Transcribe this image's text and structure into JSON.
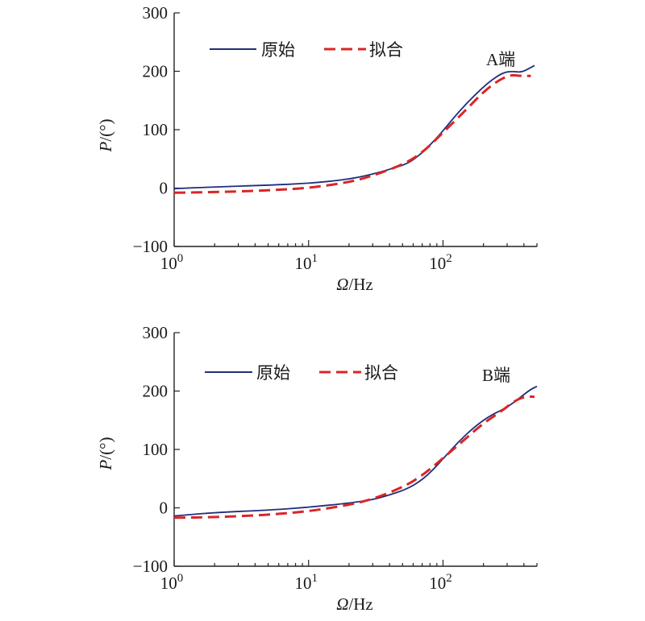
{
  "chart_data": [
    {
      "type": "line",
      "id": "A",
      "annotation": "A端",
      "xlabel": "Ω/Hz",
      "ylabel": "P/(°)",
      "x_scale": "log",
      "xlim": [
        1,
        500
      ],
      "ylim": [
        -100,
        300
      ],
      "yticks": [
        "−100",
        "0",
        "100",
        "200",
        "300"
      ],
      "xticks": [
        {
          "base": "10",
          "exp": "0"
        },
        {
          "base": "10",
          "exp": "1"
        },
        {
          "base": "10",
          "exp": "2"
        }
      ],
      "legend": {
        "position": "top-left",
        "entries": [
          "原始",
          "拟合"
        ]
      },
      "series": [
        {
          "name": "原始",
          "style": "solid",
          "color": "#1f2f7a",
          "points": [
            [
              1,
              -1
            ],
            [
              2,
              2
            ],
            [
              5,
              5
            ],
            [
              10,
              8
            ],
            [
              20,
              15
            ],
            [
              30,
              24
            ],
            [
              40,
              32
            ],
            [
              55,
              42
            ],
            [
              70,
              60
            ],
            [
              85,
              80
            ],
            [
              100,
              98
            ],
            [
              130,
              130
            ],
            [
              170,
              158
            ],
            [
              220,
              182
            ],
            [
              280,
              198
            ],
            [
              330,
              200
            ],
            [
              380,
              198
            ],
            [
              430,
              204
            ],
            [
              480,
              210
            ]
          ]
        },
        {
          "name": "拟合",
          "style": "dashed",
          "color": "#d92626",
          "points": [
            [
              1,
              -8
            ],
            [
              2,
              -7
            ],
            [
              5,
              -4
            ],
            [
              10,
              0
            ],
            [
              20,
              10
            ],
            [
              30,
              21
            ],
            [
              50,
              40
            ],
            [
              70,
              60
            ],
            [
              100,
              95
            ],
            [
              150,
              135
            ],
            [
              200,
              165
            ],
            [
              260,
              185
            ],
            [
              320,
              194
            ],
            [
              380,
              192
            ],
            [
              450,
              192
            ]
          ]
        }
      ]
    },
    {
      "type": "line",
      "id": "B",
      "annotation": "B端",
      "xlabel": "Ω/Hz",
      "ylabel": "P/(°)",
      "x_scale": "log",
      "xlim": [
        1,
        500
      ],
      "ylim": [
        -100,
        300
      ],
      "yticks": [
        "−100",
        "0",
        "100",
        "200",
        "300"
      ],
      "xticks": [
        {
          "base": "10",
          "exp": "0"
        },
        {
          "base": "10",
          "exp": "1"
        },
        {
          "base": "10",
          "exp": "2"
        }
      ],
      "legend": {
        "position": "top-left",
        "entries": [
          "原始",
          "拟合"
        ]
      },
      "series": [
        {
          "name": "原始",
          "style": "solid",
          "color": "#1f2f7a",
          "points": [
            [
              1,
              -14
            ],
            [
              2,
              -8
            ],
            [
              5,
              -4
            ],
            [
              10,
              1
            ],
            [
              20,
              8
            ],
            [
              30,
              14
            ],
            [
              40,
              22
            ],
            [
              55,
              33
            ],
            [
              70,
              48
            ],
            [
              85,
              66
            ],
            [
              100,
              84
            ],
            [
              130,
              113
            ],
            [
              170,
              138
            ],
            [
              220,
              157
            ],
            [
              300,
              172
            ],
            [
              380,
              190
            ],
            [
              450,
              203
            ],
            [
              500,
              208
            ]
          ]
        },
        {
          "name": "拟合",
          "style": "dashed",
          "color": "#d92626",
          "points": [
            [
              1,
              -17
            ],
            [
              2,
              -16
            ],
            [
              5,
              -12
            ],
            [
              10,
              -6
            ],
            [
              20,
              5
            ],
            [
              30,
              15
            ],
            [
              50,
              35
            ],
            [
              70,
              55
            ],
            [
              100,
              85
            ],
            [
              150,
              120
            ],
            [
              200,
              145
            ],
            [
              270,
              165
            ],
            [
              350,
              185
            ],
            [
              420,
              191
            ],
            [
              480,
              190
            ]
          ]
        }
      ]
    }
  ]
}
